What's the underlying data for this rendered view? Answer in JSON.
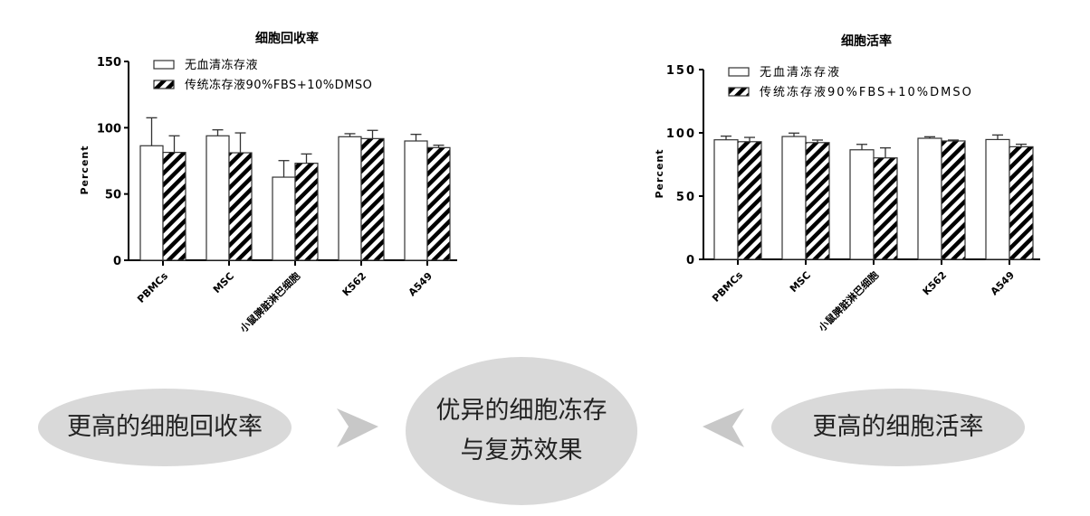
{
  "chart_data": [
    {
      "type": "bar",
      "title": "细胞回收率",
      "ylabel": "Percent",
      "xlabel": "",
      "ylim": [
        0,
        150
      ],
      "yticks": [
        0,
        50,
        100,
        150
      ],
      "categories": [
        "PBMCs",
        "MSC",
        "小鼠脾脏淋巴细胞",
        "K562",
        "A549"
      ],
      "legend_position": "top-left",
      "series": [
        {
          "name": "无血清冻存液",
          "fill": "white",
          "values": [
            86.4,
            93.9,
            62.7,
            93.2,
            90.0
          ],
          "error_upper": [
            107.5,
            98.4,
            75.2,
            95.5,
            95.0
          ]
        },
        {
          "name": "传统冻存液90%FBS+10%DMSO",
          "fill": "hatched",
          "values": [
            81.4,
            81.1,
            73.2,
            91.8,
            85.0
          ],
          "error_upper": [
            93.9,
            96.1,
            80.2,
            98.0,
            86.8
          ]
        }
      ]
    },
    {
      "type": "bar",
      "title": "细胞活率",
      "ylabel": "Percent",
      "xlabel": "",
      "ylim": [
        0,
        150
      ],
      "yticks": [
        0,
        50,
        100,
        150
      ],
      "categories": [
        "PBMCs",
        "MSC",
        "小鼠脾脏淋巴细胞",
        "K562",
        "A549"
      ],
      "legend_position": "top-left",
      "series": [
        {
          "name": "无血清冻存液",
          "fill": "white",
          "values": [
            94.5,
            97.1,
            86.6,
            95.7,
            94.7
          ],
          "error_upper": [
            97.4,
            99.8,
            90.9,
            96.9,
            98.3
          ]
        },
        {
          "name": "传统冻存液90%FBS+10%DMSO",
          "fill": "hatched",
          "values": [
            93.0,
            92.3,
            80.2,
            93.6,
            89.0
          ],
          "error_upper": [
            96.4,
            94.3,
            88.1,
            94.3,
            91.0
          ]
        }
      ]
    }
  ],
  "summary": {
    "left": "更高的细胞回收率",
    "center_line1": "优异的细胞冻存",
    "center_line2": "与复苏效果",
    "right": "更高的细胞活率",
    "ellipse_color": "#d9d9d9",
    "arrow_color": "#c8c8c8"
  }
}
